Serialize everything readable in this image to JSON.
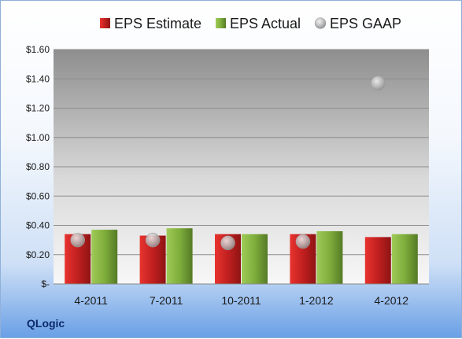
{
  "company": "QLogic",
  "chart_data": {
    "type": "bar",
    "categories": [
      "4-2011",
      "7-2011",
      "10-2011",
      "1-2012",
      "4-2012"
    ],
    "series": [
      {
        "name": "EPS Estimate",
        "kind": "bar",
        "color": "#c0201f",
        "values": [
          0.34,
          0.33,
          0.34,
          0.34,
          0.32
        ]
      },
      {
        "name": "EPS Actual",
        "kind": "bar",
        "color": "#7fae3c",
        "values": [
          0.37,
          0.38,
          0.34,
          0.36,
          0.34
        ]
      },
      {
        "name": "EPS GAAP",
        "kind": "scatter",
        "color": "#9a9a9a",
        "values": [
          0.3,
          0.3,
          0.28,
          0.29,
          1.37
        ]
      }
    ],
    "ylim": [
      0,
      1.6
    ],
    "yticks": [
      {
        "value": 0,
        "label": "$-"
      },
      {
        "value": 0.2,
        "label": "$0.20"
      },
      {
        "value": 0.4,
        "label": "$0.40"
      },
      {
        "value": 0.6,
        "label": "$0.60"
      },
      {
        "value": 0.8,
        "label": "$0.80"
      },
      {
        "value": 1.0,
        "label": "$1.00"
      },
      {
        "value": 1.2,
        "label": "$1.20"
      },
      {
        "value": 1.4,
        "label": "$1.40"
      },
      {
        "value": 1.6,
        "label": "$1.60"
      }
    ],
    "grid": true,
    "legend_position": "top"
  }
}
